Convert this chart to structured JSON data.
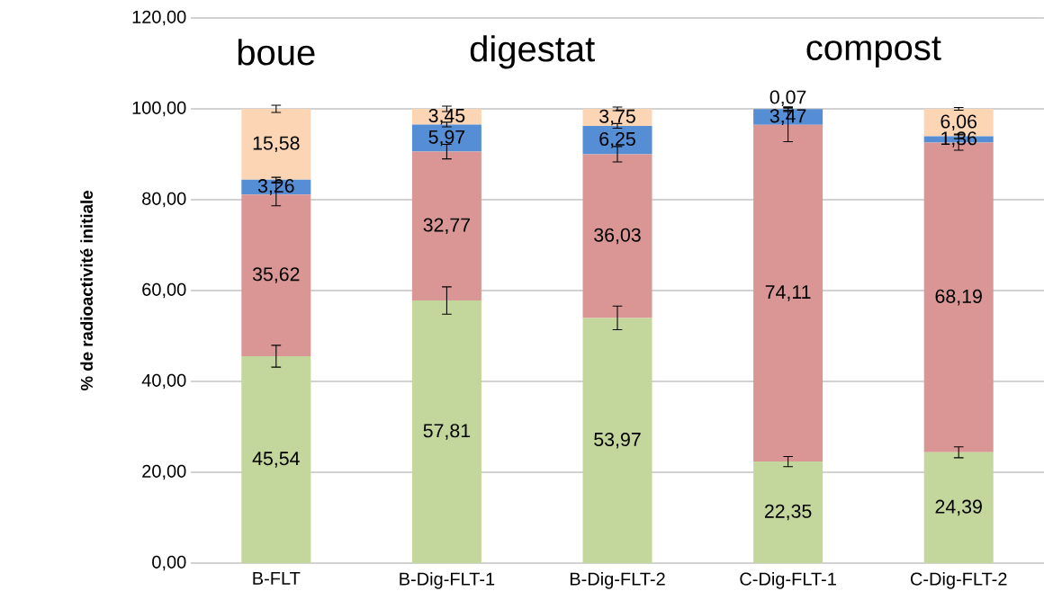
{
  "chart_data": {
    "type": "bar",
    "stacked": true,
    "ylabel": "% de radioactivité initiale",
    "annotations": [
      "boue",
      "digestat",
      "compost"
    ],
    "categories": [
      "B-FLT",
      "B-Dig-FLT-1",
      "B-Dig-FLT-2",
      "C-Dig-FLT-1",
      "C-Dig-FLT-2"
    ],
    "series": [
      {
        "color": "#c3d69b",
        "values": [
          45.54,
          57.81,
          53.97,
          22.35,
          24.39
        ],
        "errors": [
          2.4,
          3.0,
          2.6,
          1.1,
          1.2
        ],
        "value_labels": [
          "45,54",
          "57,81",
          "53,97",
          "22,35",
          "24,39"
        ]
      },
      {
        "color": "#d99694",
        "values": [
          35.62,
          32.77,
          36.03,
          74.11,
          68.19
        ],
        "errors": [
          2.5,
          1.6,
          1.7,
          3.7,
          1.7
        ],
        "value_labels": [
          "35,62",
          "32,77",
          "36,03",
          "74,11",
          "68,19"
        ]
      },
      {
        "color": "#558ed5",
        "values": [
          3.26,
          5.97,
          6.25,
          3.47,
          1.36
        ],
        "errors": [
          0.5,
          0.5,
          0.5,
          0.5,
          0.5
        ],
        "value_labels": [
          "3,26",
          "5,97",
          "6,25",
          "3,47",
          "1,36"
        ]
      },
      {
        "color": "#fcd5b5",
        "values": [
          15.58,
          3.45,
          3.75,
          0.07,
          6.06
        ],
        "errors": [
          0.8,
          0.6,
          0.4,
          0.3,
          0.3
        ],
        "value_labels": [
          "15,58",
          "3,45",
          "3,75",
          "0,07",
          "6,06"
        ]
      }
    ],
    "ylim": [
      0,
      120
    ],
    "yticks": [
      {
        "value": 0,
        "label": "0,00"
      },
      {
        "value": 20,
        "label": "20,00"
      },
      {
        "value": 40,
        "label": "40,00"
      },
      {
        "value": 60,
        "label": "60,00"
      },
      {
        "value": 80,
        "label": "80,00"
      },
      {
        "value": 100,
        "label": "100,00"
      },
      {
        "value": 120,
        "label": "120,00"
      }
    ],
    "grid": "y"
  }
}
